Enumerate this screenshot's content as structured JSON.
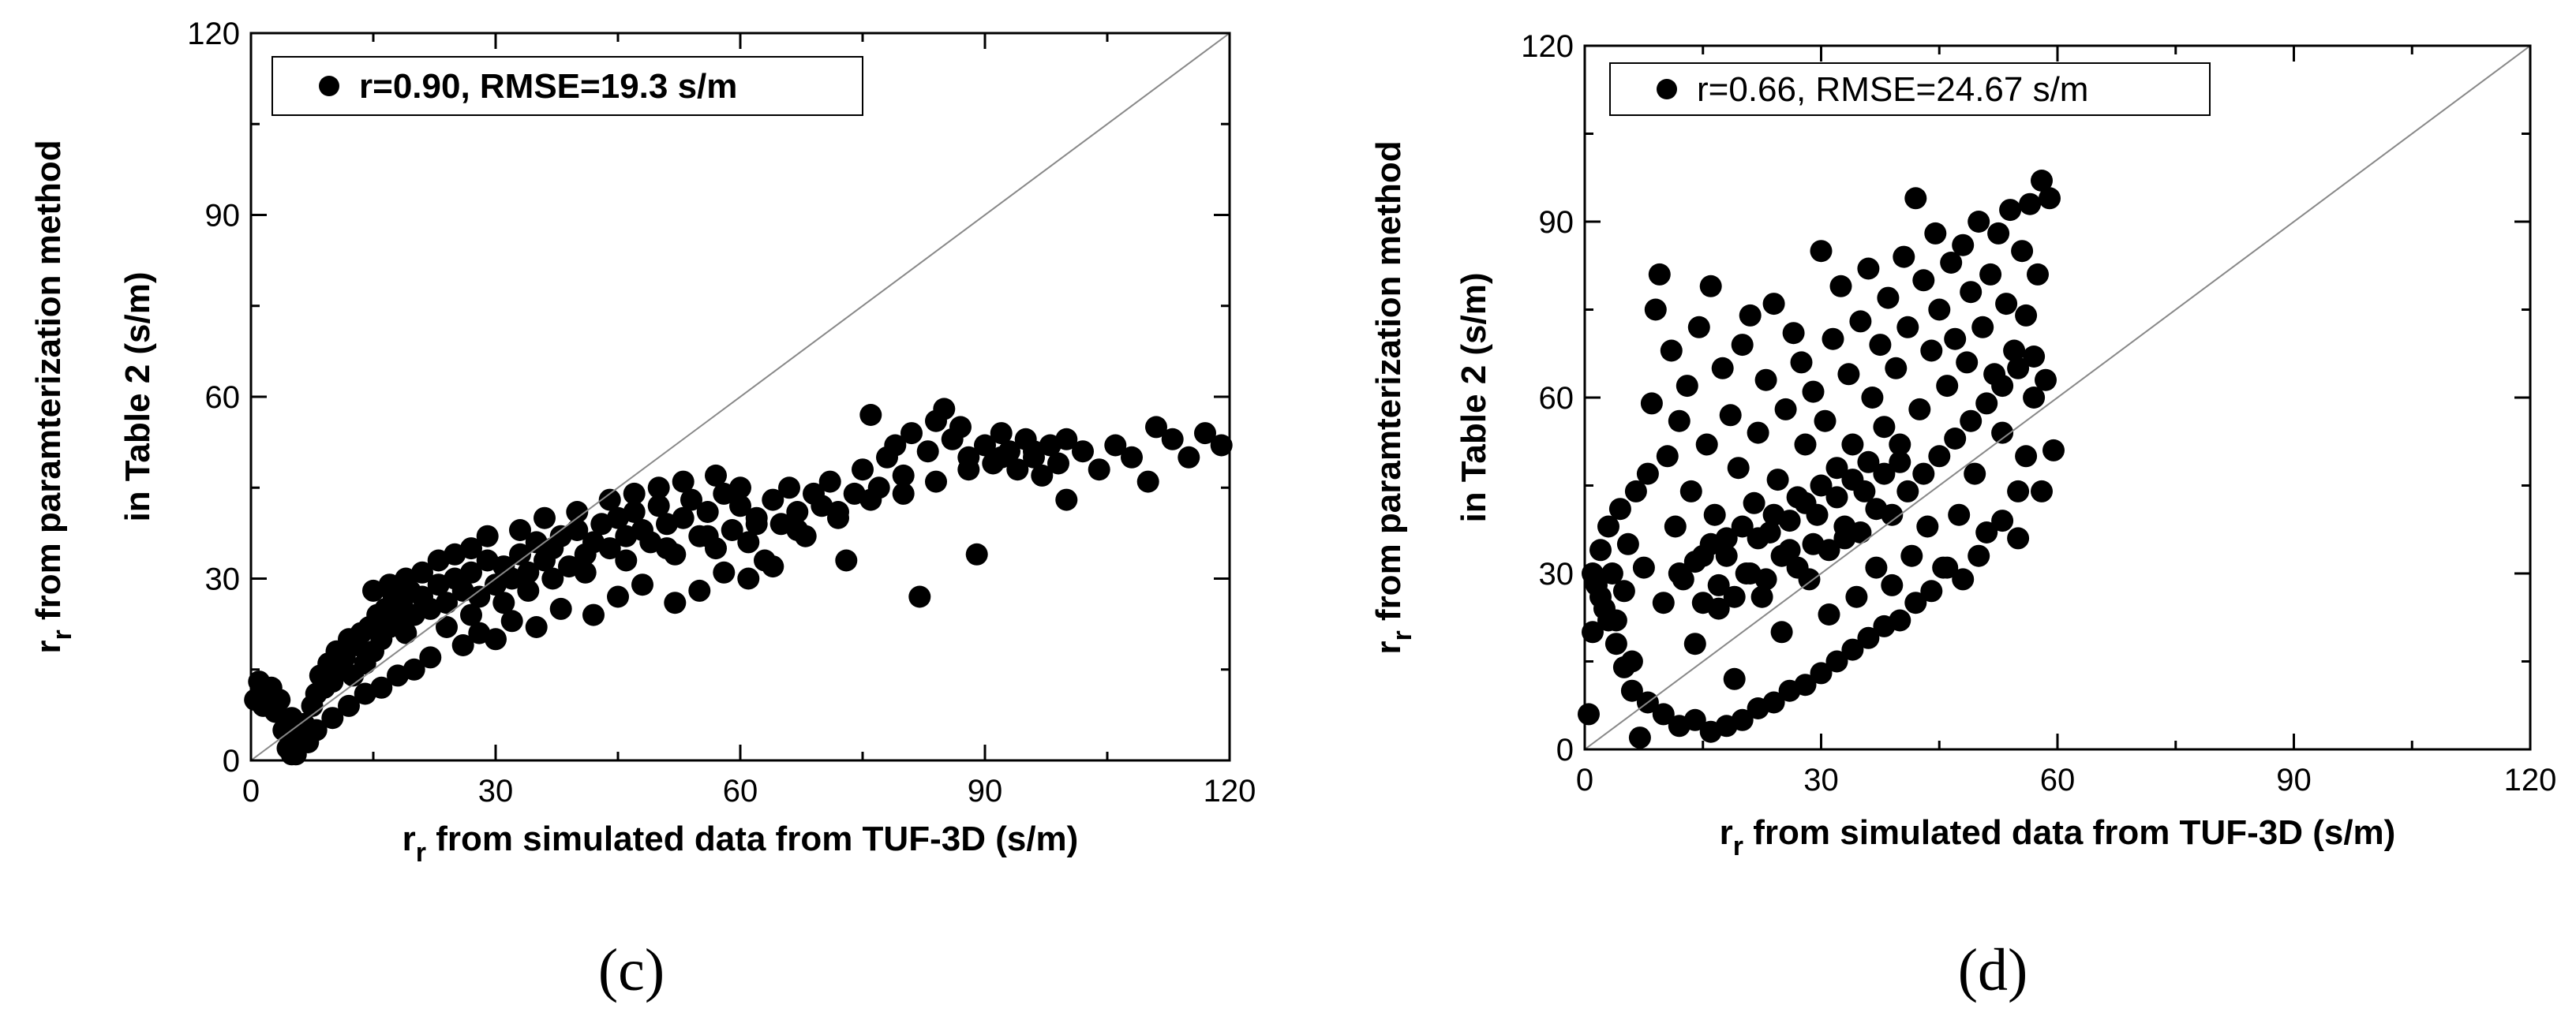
{
  "chart_data": [
    {
      "type": "scatter",
      "panel_label": "(c)",
      "legend": "r=0.90, RMSE=19.3 s/m",
      "legend_bold": true,
      "xlabel_sym": "r",
      "xlabel_sub": "r",
      "xlabel_rest": " from simulated data from TUF-3D (s/m)",
      "ylabel_sym": "r",
      "ylabel_sub": "r",
      "ylabel_rest": " from paramterization method",
      "ylabel_line2": "in Table 2 (s/m)",
      "xlim": [
        0,
        120
      ],
      "ylim": [
        0,
        120
      ],
      "xticks": [
        "0",
        "30",
        "60",
        "90",
        "120"
      ],
      "yticks": [
        "0",
        "30",
        "60",
        "90",
        "120"
      ],
      "reference_line": "1:1",
      "points": [
        [
          0.5,
          10
        ],
        [
          1,
          13
        ],
        [
          1.5,
          9
        ],
        [
          2,
          11
        ],
        [
          2.5,
          12
        ],
        [
          3,
          8
        ],
        [
          3.5,
          10
        ],
        [
          4,
          5
        ],
        [
          4.5,
          2
        ],
        [
          5,
          7
        ],
        [
          5.5,
          1
        ],
        [
          6,
          4
        ],
        [
          6.5,
          6
        ],
        [
          7,
          3
        ],
        [
          7.5,
          9
        ],
        [
          8,
          11
        ],
        [
          8.5,
          14
        ],
        [
          9,
          12
        ],
        [
          9.5,
          16
        ],
        [
          10,
          13
        ],
        [
          10.5,
          18
        ],
        [
          11,
          15
        ],
        [
          11.5,
          17
        ],
        [
          12,
          20
        ],
        [
          12.5,
          14
        ],
        [
          13,
          19
        ],
        [
          13.5,
          21
        ],
        [
          14,
          16
        ],
        [
          14.5,
          22
        ],
        [
          15,
          18
        ],
        [
          15.5,
          24
        ],
        [
          16,
          20
        ],
        [
          16.5,
          25
        ],
        [
          17,
          22
        ],
        [
          17.5,
          27
        ],
        [
          18,
          23
        ],
        [
          18.5,
          26
        ],
        [
          19,
          21
        ],
        [
          19.5,
          28
        ],
        [
          20,
          24
        ],
        [
          21,
          27
        ],
        [
          22,
          25
        ],
        [
          23,
          29
        ],
        [
          24,
          26
        ],
        [
          25,
          30
        ],
        [
          26,
          28
        ],
        [
          27,
          31
        ],
        [
          28,
          27
        ],
        [
          29,
          33
        ],
        [
          30,
          29
        ],
        [
          31,
          32
        ],
        [
          32,
          30
        ],
        [
          33,
          34
        ],
        [
          34,
          31
        ],
        [
          35,
          36
        ],
        [
          36,
          33
        ],
        [
          37,
          35
        ],
        [
          38,
          37
        ],
        [
          39,
          32
        ],
        [
          40,
          38
        ],
        [
          41,
          34
        ],
        [
          42,
          36
        ],
        [
          43,
          39
        ],
        [
          44,
          35
        ],
        [
          45,
          40
        ],
        [
          46,
          37
        ],
        [
          47,
          41
        ],
        [
          48,
          38
        ],
        [
          49,
          36
        ],
        [
          50,
          42
        ],
        [
          51,
          39
        ],
        [
          52,
          34
        ],
        [
          53,
          40
        ],
        [
          54,
          43
        ],
        [
          55,
          37
        ],
        [
          56,
          41
        ],
        [
          57,
          35
        ],
        [
          58,
          44
        ],
        [
          59,
          38
        ],
        [
          60,
          42
        ],
        [
          61,
          36
        ],
        [
          62,
          40
        ],
        [
          63,
          33
        ],
        [
          64,
          43
        ],
        [
          65,
          39
        ],
        [
          66,
          45
        ],
        [
          67,
          41
        ],
        [
          68,
          37
        ],
        [
          69,
          44
        ],
        [
          70,
          42
        ],
        [
          71,
          46
        ],
        [
          72,
          40
        ],
        [
          73,
          33
        ],
        [
          74,
          44
        ],
        [
          75,
          48
        ],
        [
          76,
          57
        ],
        [
          77,
          45
        ],
        [
          78,
          50
        ],
        [
          79,
          52
        ],
        [
          80,
          47
        ],
        [
          81,
          54
        ],
        [
          82,
          27
        ],
        [
          83,
          51
        ],
        [
          84,
          56
        ],
        [
          85,
          58
        ],
        [
          86,
          53
        ],
        [
          87,
          55
        ],
        [
          88,
          50
        ],
        [
          89,
          34
        ],
        [
          90,
          52
        ],
        [
          91,
          49
        ],
        [
          92,
          54
        ],
        [
          93,
          51
        ],
        [
          94,
          48
        ],
        [
          95,
          53
        ],
        [
          96,
          50
        ],
        [
          97,
          47
        ],
        [
          98,
          52
        ],
        [
          99,
          49
        ],
        [
          100,
          43
        ],
        [
          102,
          51
        ],
        [
          104,
          48
        ],
        [
          106,
          52
        ],
        [
          108,
          50
        ],
        [
          110,
          46
        ],
        [
          111,
          55
        ],
        [
          113,
          53
        ],
        [
          115,
          50
        ],
        [
          117,
          54
        ],
        [
          119,
          52
        ],
        [
          38,
          25
        ],
        [
          42,
          24
        ],
        [
          45,
          27
        ],
        [
          48,
          29
        ],
        [
          52,
          26
        ],
        [
          55,
          28
        ],
        [
          58,
          31
        ],
        [
          61,
          30
        ],
        [
          64,
          32
        ],
        [
          35,
          22
        ],
        [
          32,
          23
        ],
        [
          30,
          20
        ],
        [
          28,
          21
        ],
        [
          26,
          19
        ],
        [
          22,
          17
        ],
        [
          20,
          15
        ],
        [
          18,
          14
        ],
        [
          16,
          12
        ],
        [
          14,
          11
        ],
        [
          12,
          9
        ],
        [
          10,
          7
        ],
        [
          8,
          5
        ],
        [
          6,
          3
        ],
        [
          5,
          1
        ],
        [
          15,
          28
        ],
        [
          17,
          29
        ],
        [
          19,
          30
        ],
        [
          21,
          31
        ],
        [
          23,
          33
        ],
        [
          25,
          34
        ],
        [
          27,
          35
        ],
        [
          29,
          37
        ],
        [
          33,
          38
        ],
        [
          36,
          40
        ],
        [
          40,
          41
        ],
        [
          44,
          43
        ],
        [
          47,
          44
        ],
        [
          50,
          45
        ],
        [
          53,
          46
        ],
        [
          57,
          47
        ],
        [
          60,
          45
        ],
        [
          24,
          22
        ],
        [
          27,
          24
        ],
        [
          31,
          26
        ],
        [
          34,
          28
        ],
        [
          37,
          30
        ],
        [
          41,
          31
        ],
        [
          46,
          33
        ],
        [
          51,
          35
        ],
        [
          56,
          37
        ],
        [
          62,
          39
        ],
        [
          67,
          38
        ],
        [
          72,
          41
        ],
        [
          76,
          43
        ],
        [
          80,
          44
        ],
        [
          84,
          46
        ],
        [
          88,
          48
        ],
        [
          92,
          50
        ],
        [
          96,
          51
        ],
        [
          100,
          53
        ]
      ]
    },
    {
      "type": "scatter",
      "panel_label": "(d)",
      "legend": "r=0.66, RMSE=24.67 s/m",
      "legend_bold": false,
      "xlabel_sym": "r",
      "xlabel_sub": "r",
      "xlabel_rest": " from simulated data from TUF-3D (s/m)",
      "ylabel_sym": "r",
      "ylabel_sub": "r",
      "ylabel_rest": " from paramterization method",
      "ylabel_line2": "in Table 2 (s/m)",
      "xlim": [
        0,
        120
      ],
      "ylim": [
        0,
        120
      ],
      "xticks": [
        "0",
        "30",
        "60",
        "90",
        "120"
      ],
      "yticks": [
        "0",
        "30",
        "60",
        "90",
        "120"
      ],
      "reference_line": "1:1",
      "points": [
        [
          0.5,
          6
        ],
        [
          1,
          20
        ],
        [
          1.5,
          28
        ],
        [
          2,
          34
        ],
        [
          2.5,
          24
        ],
        [
          3,
          38
        ],
        [
          3.5,
          30
        ],
        [
          4,
          22
        ],
        [
          4.5,
          41
        ],
        [
          5,
          27
        ],
        [
          5.5,
          35
        ],
        [
          6,
          15
        ],
        [
          6.5,
          44
        ],
        [
          7,
          2
        ],
        [
          7.5,
          31
        ],
        [
          8,
          47
        ],
        [
          8.5,
          59
        ],
        [
          9,
          75
        ],
        [
          9.5,
          81
        ],
        [
          10,
          25
        ],
        [
          10.5,
          50
        ],
        [
          11,
          68
        ],
        [
          11.5,
          38
        ],
        [
          12,
          56
        ],
        [
          12.5,
          29
        ],
        [
          13,
          62
        ],
        [
          13.5,
          44
        ],
        [
          14,
          18
        ],
        [
          14.5,
          72
        ],
        [
          15,
          33
        ],
        [
          15.5,
          52
        ],
        [
          16,
          79
        ],
        [
          16.5,
          40
        ],
        [
          17,
          24
        ],
        [
          17.5,
          65
        ],
        [
          18,
          36
        ],
        [
          18.5,
          57
        ],
        [
          19,
          12
        ],
        [
          19.5,
          48
        ],
        [
          20,
          69
        ],
        [
          20.5,
          30
        ],
        [
          21,
          74
        ],
        [
          21.5,
          42
        ],
        [
          22,
          54
        ],
        [
          22.5,
          26
        ],
        [
          23,
          63
        ],
        [
          23.5,
          37
        ],
        [
          24,
          76
        ],
        [
          24.5,
          46
        ],
        [
          25,
          20
        ],
        [
          25.5,
          58
        ],
        [
          26,
          34
        ],
        [
          26.5,
          71
        ],
        [
          27,
          43
        ],
        [
          27.5,
          66
        ],
        [
          28,
          52
        ],
        [
          28.5,
          29
        ],
        [
          29,
          61
        ],
        [
          29.5,
          40
        ],
        [
          30,
          85
        ],
        [
          30.5,
          56
        ],
        [
          31,
          23
        ],
        [
          31.5,
          70
        ],
        [
          32,
          48
        ],
        [
          32.5,
          79
        ],
        [
          33,
          36
        ],
        [
          33.5,
          64
        ],
        [
          34,
          52
        ],
        [
          34.5,
          26
        ],
        [
          35,
          73
        ],
        [
          35.5,
          44
        ],
        [
          36,
          82
        ],
        [
          36.5,
          60
        ],
        [
          37,
          31
        ],
        [
          37.5,
          69
        ],
        [
          38,
          55
        ],
        [
          38.5,
          77
        ],
        [
          39,
          28
        ],
        [
          39.5,
          65
        ],
        [
          40,
          49
        ],
        [
          40.5,
          84
        ],
        [
          41,
          72
        ],
        [
          41.5,
          33
        ],
        [
          42,
          94
        ],
        [
          42.5,
          58
        ],
        [
          43,
          80
        ],
        [
          43.5,
          38
        ],
        [
          44,
          68
        ],
        [
          44.5,
          88
        ],
        [
          45,
          75
        ],
        [
          45.5,
          31
        ],
        [
          46,
          62
        ],
        [
          46.5,
          83
        ],
        [
          47,
          70
        ],
        [
          47.5,
          40
        ],
        [
          48,
          86
        ],
        [
          48.5,
          66
        ],
        [
          49,
          78
        ],
        [
          49.5,
          47
        ],
        [
          50,
          90
        ],
        [
          50.5,
          72
        ],
        [
          51,
          37
        ],
        [
          51.5,
          81
        ],
        [
          52,
          64
        ],
        [
          52.5,
          88
        ],
        [
          53,
          54
        ],
        [
          53.5,
          76
        ],
        [
          54,
          92
        ],
        [
          54.5,
          68
        ],
        [
          55,
          44
        ],
        [
          55.5,
          85
        ],
        [
          56,
          74
        ],
        [
          56.5,
          93
        ],
        [
          57,
          60
        ],
        [
          57.5,
          81
        ],
        [
          58,
          97
        ],
        [
          58.5,
          63
        ],
        [
          59,
          94
        ],
        [
          59.5,
          51
        ],
        [
          58,
          44
        ],
        [
          56,
          50
        ],
        [
          55,
          36
        ],
        [
          53,
          39
        ],
        [
          50,
          33
        ],
        [
          48,
          29
        ],
        [
          46,
          31
        ],
        [
          44,
          27
        ],
        [
          42,
          25
        ],
        [
          40,
          22
        ],
        [
          38,
          21
        ],
        [
          36,
          19
        ],
        [
          34,
          17
        ],
        [
          32,
          15
        ],
        [
          30,
          13
        ],
        [
          28,
          11
        ],
        [
          26,
          10
        ],
        [
          24,
          8
        ],
        [
          22,
          7
        ],
        [
          20,
          5
        ],
        [
          18,
          4
        ],
        [
          16,
          3
        ],
        [
          14,
          5
        ],
        [
          12,
          4
        ],
        [
          10,
          6
        ],
        [
          8,
          8
        ],
        [
          6,
          10
        ],
        [
          5,
          14
        ],
        [
          4,
          18
        ],
        [
          3,
          22
        ],
        [
          2,
          26
        ],
        [
          1,
          30
        ],
        [
          12,
          30
        ],
        [
          14,
          32
        ],
        [
          16,
          35
        ],
        [
          18,
          33
        ],
        [
          20,
          38
        ],
        [
          22,
          36
        ],
        [
          24,
          40
        ],
        [
          26,
          39
        ],
        [
          28,
          42
        ],
        [
          30,
          45
        ],
        [
          32,
          43
        ],
        [
          34,
          46
        ],
        [
          36,
          49
        ],
        [
          38,
          47
        ],
        [
          40,
          52
        ],
        [
          15,
          25
        ],
        [
          17,
          28
        ],
        [
          19,
          26
        ],
        [
          21,
          30
        ],
        [
          23,
          29
        ],
        [
          25,
          33
        ],
        [
          27,
          31
        ],
        [
          29,
          35
        ],
        [
          31,
          34
        ],
        [
          33,
          38
        ],
        [
          35,
          37
        ],
        [
          37,
          41
        ],
        [
          39,
          40
        ],
        [
          41,
          44
        ],
        [
          43,
          47
        ],
        [
          45,
          50
        ],
        [
          47,
          53
        ],
        [
          49,
          56
        ],
        [
          51,
          59
        ],
        [
          53,
          62
        ],
        [
          55,
          65
        ],
        [
          57,
          67
        ]
      ]
    }
  ]
}
